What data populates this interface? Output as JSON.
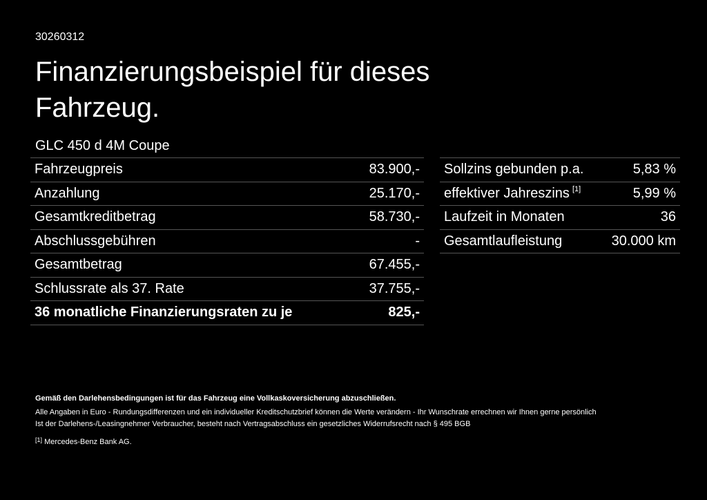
{
  "header": {
    "code": "30260312",
    "title": "Finanzierungsbeispiel für dieses Fahrzeug.",
    "model": "GLC 450 d 4M Coupe"
  },
  "left_table": {
    "rows": [
      {
        "label": "Fahrzeugpreis",
        "value": "83.900,-"
      },
      {
        "label": "Anzahlung",
        "value": "25.170,-"
      },
      {
        "label": "Gesamtkreditbetrag",
        "value": "58.730,-"
      },
      {
        "label": "Abschlussgebühren",
        "value": "-"
      },
      {
        "label": "Gesamtbetrag",
        "value": "67.455,-"
      },
      {
        "label": "Schlussrate als 37. Rate",
        "value": "37.755,-"
      },
      {
        "label": "36 monatliche Finanzierungsraten zu je",
        "value": "825,-"
      }
    ]
  },
  "right_table": {
    "rows": [
      {
        "label": "Sollzins gebunden p.a.",
        "value": "5,83 %"
      },
      {
        "label": "effektiver Jahreszins",
        "note": "[1]",
        "value": "5,99 %"
      },
      {
        "label": "Laufzeit in Monaten",
        "value": "36"
      },
      {
        "label": "Gesamtlaufleistung",
        "value": "30.000 km"
      }
    ]
  },
  "footer": {
    "notice": "Gemäß den Darlehensbedingungen ist für das Fahrzeug eine Vollkaskoversicherung abzuschließen.",
    "lines": [
      "Alle Angaben in Euro - Rundungsdifferenzen und ein individueller Kreditschutzbrief können die Werte verändern - Ihr Wunschrate errechnen wir Ihnen gerne persönlich",
      "Ist der Darlehens-/Leasingnehmer Verbraucher, besteht nach Vertragsabschluss ein gesetzliches Widerrufsrecht nach § 495 BGB"
    ],
    "footnote": {
      "marker": "[1]",
      "text": "Mercedes-Benz Bank AG."
    }
  }
}
